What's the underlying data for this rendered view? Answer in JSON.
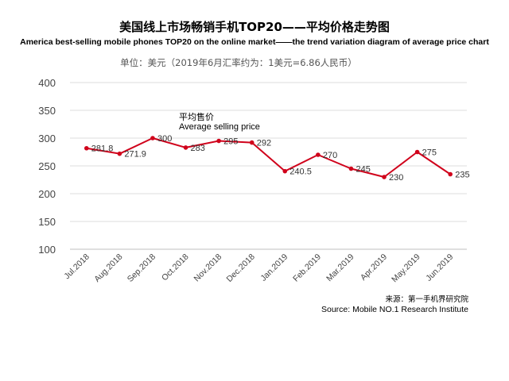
{
  "chart_data": {
    "type": "line",
    "title": "美国线上市场畅销手机TOP20——平均价格走势图",
    "subtitle": "America best-selling mobile phones TOP20 on the online market——the trend variation diagram of average price chart",
    "unit_note": "单位：美元（2019年6月汇率约为：1美元=6.86人民币）",
    "categories": [
      "Jul.2018",
      "Aug.2018",
      "Sep.2018",
      "Oct.2018",
      "Nov.2018",
      "Dec.2018",
      "Jan.2019",
      "Feb.2019",
      "Mar.2019",
      "Apr.2019",
      "May.2019",
      "Jun.2019"
    ],
    "series": [
      {
        "name_cn": "平均售价",
        "name_en": "Average selling price",
        "values": [
          281.8,
          271.9,
          300,
          283,
          295,
          292,
          240.5,
          270,
          245,
          230,
          275,
          235
        ],
        "labels": [
          "281.8",
          "271.9",
          "300",
          "283",
          "295",
          "292",
          "240.5",
          "270",
          "245",
          "230",
          "275",
          "235"
        ],
        "color": "#d0021b"
      }
    ],
    "yticks": [
      "400",
      "350",
      "300",
      "250",
      "200",
      "150",
      "100"
    ],
    "ylim": [
      100,
      400
    ],
    "grid": true,
    "source_cn": "来源：第一手机界研究院",
    "source_en": "Source: Mobile NO.1 Research Institute"
  }
}
